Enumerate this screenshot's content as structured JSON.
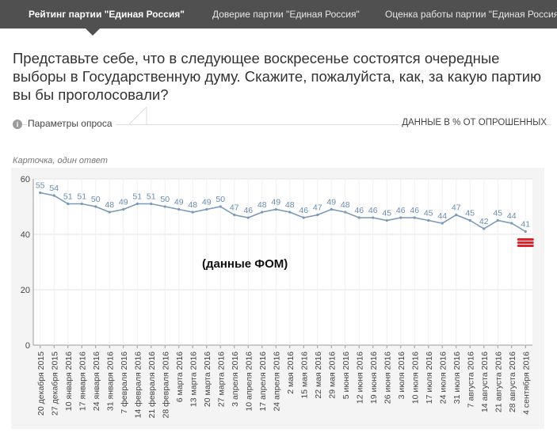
{
  "tabs": [
    {
      "label": "Рейтинг партии \"Единая Россия\"",
      "active": true
    },
    {
      "label": "Доверие партии \"Единая Россия\"",
      "active": false
    },
    {
      "label": "Оценка работы партии \"Единая Россия\"",
      "active": false
    }
  ],
  "question": "Представьте себе, что в следующее воскресенье состоятся очередные выборы в Государственную думу. Скажите, пожалуйста, как, за какую партию вы бы проголосовали?",
  "params_label": "Параметры опроса",
  "info_icon_glyph": "i",
  "units_label": "ДАННЫЕ В % ОТ ОПРОШЕННЫХ",
  "card_label": "Карточка, один ответ",
  "annotation": "(данные ФОМ)",
  "colors": {
    "line": "#7a99b8",
    "value_label": "#6b8cae",
    "marker": "#e0202a",
    "tabbar": "#505050"
  },
  "chart_data": {
    "type": "line",
    "title": "",
    "xlabel": "",
    "ylabel": "",
    "ylim": [
      0,
      60
    ],
    "yticks": [
      0,
      20,
      40,
      60
    ],
    "grid": true,
    "categories": [
      "20 декабря 2015",
      "27 декабря 2015",
      "10 января 2016",
      "17 января 2016",
      "24 января 2016",
      "31 января 2016",
      "7 февраля 2016",
      "14 февраля 2016",
      "21 февраля 2016",
      "28 февраля 2016",
      "6 марта 2016",
      "13 марта 2016",
      "20 марта 2016",
      "27 марта 2016",
      "3 апреля 2016",
      "10 апреля 2016",
      "17 апреля 2016",
      "24 апреля 2016",
      "2 мая 2016",
      "15 мая 2016",
      "22 мая 2016",
      "29 мая 2016",
      "5 июня 2016",
      "12 июня 2016",
      "19 июня 2016",
      "26 июня 2016",
      "3 июля 2016",
      "10 июля 2016",
      "17 июля 2016",
      "24 июля 2016",
      "31 июля 2016",
      "7 августа 2016",
      "14 августа 2016",
      "21 августа 2016",
      "28 августа 2016",
      "4 сентября 2016"
    ],
    "series": [
      {
        "values": [
          55,
          54,
          51,
          51,
          50,
          48,
          49,
          51,
          51,
          50,
          49,
          48,
          49,
          50,
          47,
          46,
          48,
          49,
          48,
          46,
          47,
          49,
          48,
          46,
          46,
          45,
          46,
          46,
          45,
          44,
          47,
          45,
          42,
          45,
          44,
          41
        ]
      }
    ],
    "markers": [
      {
        "category": "4 сентября 2016",
        "count": 3
      }
    ]
  }
}
